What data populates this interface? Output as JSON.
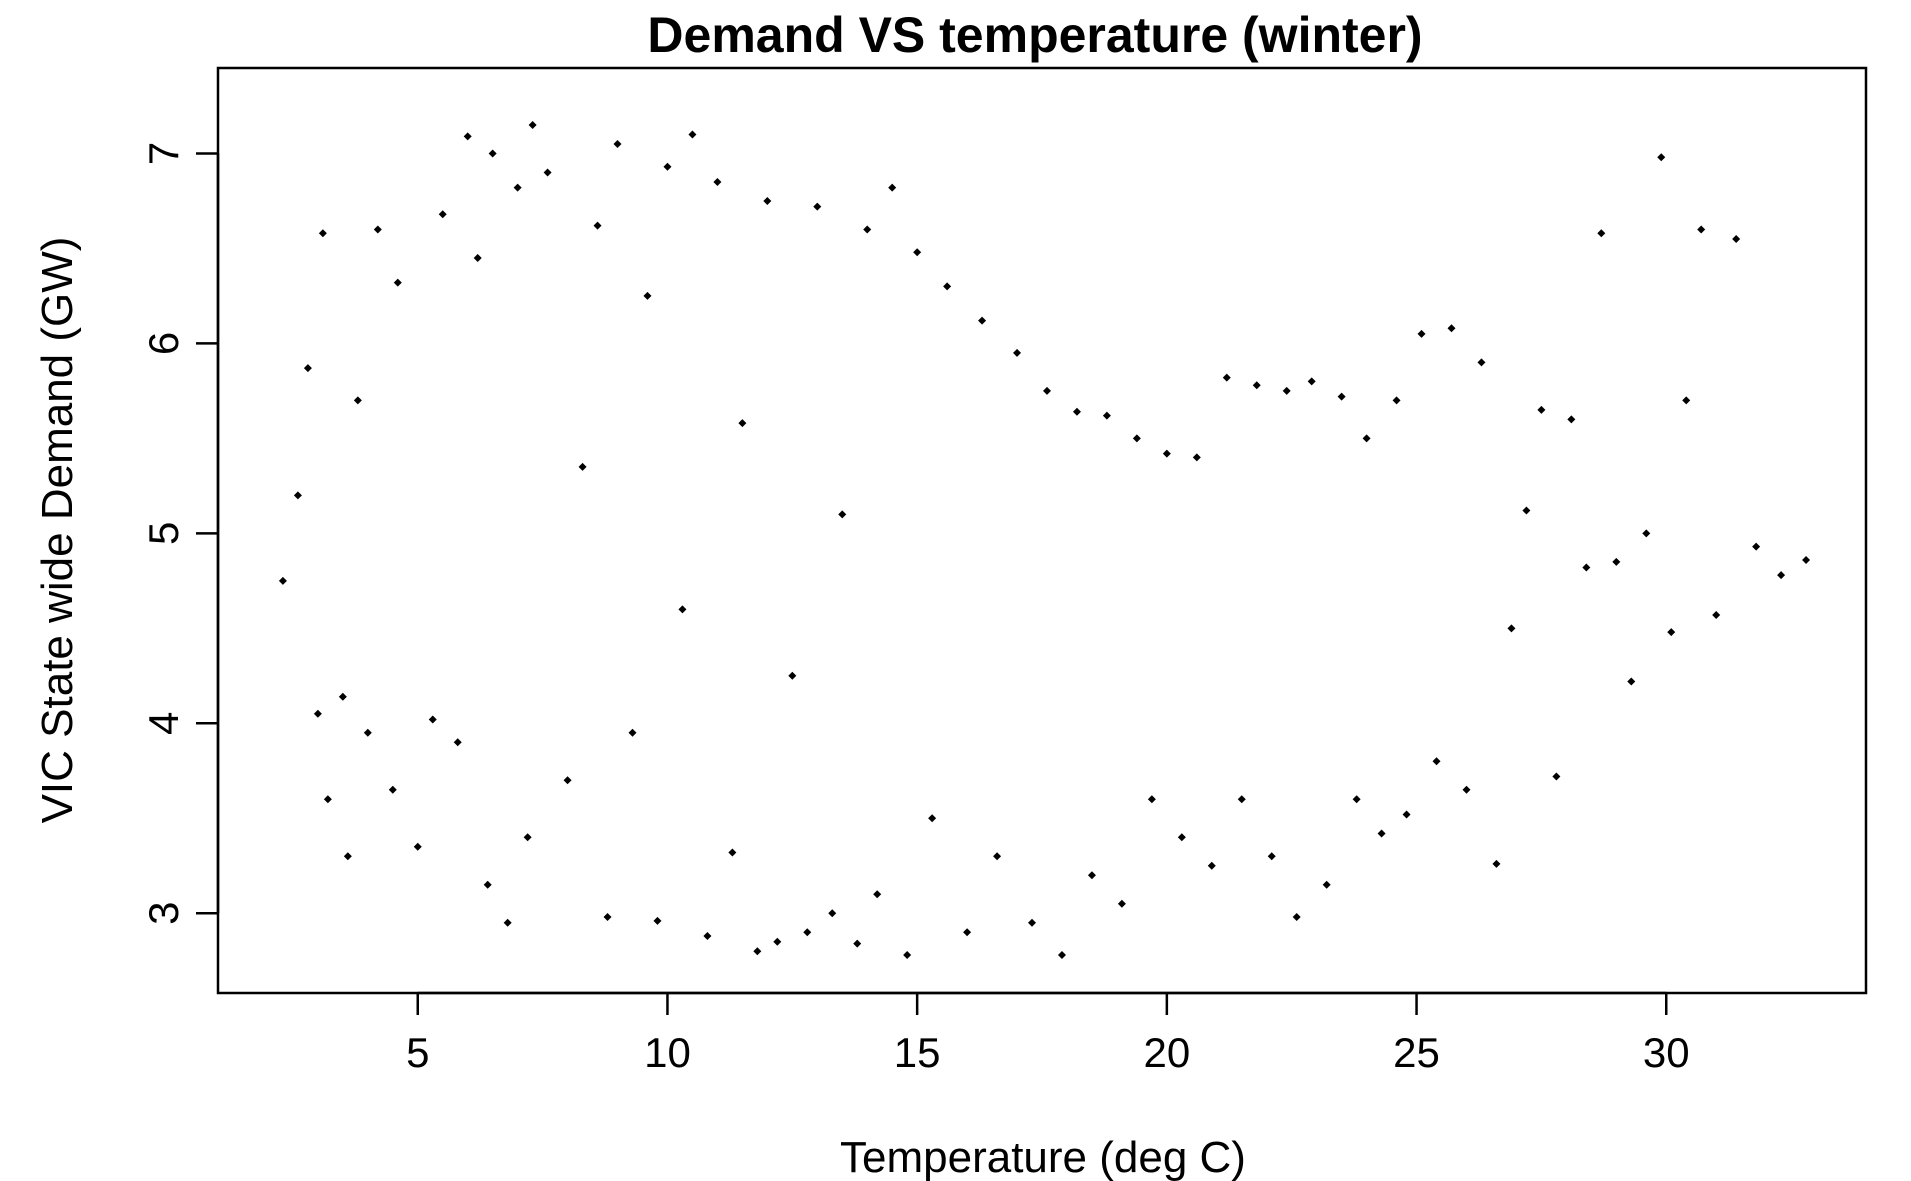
{
  "chart_data": {
    "type": "scatter",
    "title": "Demand VS temperature (winter)",
    "xlabel": "Temperature (deg C)",
    "ylabel": "VIC State wide Demand (GW)",
    "xlim": [
      1.0,
      34.0
    ],
    "ylim": [
      2.58,
      7.45
    ],
    "x_ticks": [
      5,
      10,
      15,
      20,
      25,
      30
    ],
    "x_tick_labels": [
      "5",
      "10",
      "15",
      "20",
      "25",
      "30"
    ],
    "y_ticks": [
      3,
      4,
      5,
      6,
      7
    ],
    "y_tick_labels": [
      "3",
      "4",
      "5",
      "6",
      "7"
    ],
    "grid": false,
    "legend": "none",
    "point_color": "#000000",
    "marker": "diamond",
    "series": [
      {
        "x": [
          2.3,
          2.6,
          2.8,
          3.0,
          3.1,
          3.2,
          3.5,
          3.6,
          3.8,
          4.0,
          4.2,
          4.5,
          4.6,
          5.0,
          5.3,
          5.5,
          5.8,
          6.0,
          6.2,
          6.4,
          6.5,
          6.8,
          7.0,
          7.2,
          7.3,
          7.6,
          8.0,
          8.3,
          8.6,
          8.8,
          9.0,
          9.3,
          9.6,
          9.8,
          10.0,
          10.3,
          10.5,
          10.8,
          11.0,
          11.3,
          11.5,
          11.8,
          12.0,
          12.2,
          12.5,
          12.8,
          13.0,
          13.3,
          13.5,
          13.8,
          14.0,
          14.2,
          14.5,
          14.8,
          15.0,
          15.3,
          15.6,
          16.0,
          16.3,
          16.6,
          17.0,
          17.3,
          17.6,
          17.9,
          18.2,
          18.5,
          18.8,
          19.1,
          19.4,
          19.7,
          20.0,
          20.3,
          20.6,
          20.9,
          21.2,
          21.5,
          21.8,
          22.1,
          22.4,
          22.6,
          22.9,
          23.2,
          23.5,
          23.8,
          24.0,
          24.3,
          24.6,
          24.8,
          25.1,
          25.4,
          25.7,
          26.0,
          26.3,
          26.6,
          26.9,
          27.2,
          27.5,
          27.8,
          28.1,
          28.4,
          28.7,
          29.0,
          29.3,
          29.6,
          29.9,
          30.1,
          30.4,
          30.7,
          31.0,
          31.4,
          31.8,
          32.3,
          32.8
        ],
        "y": [
          4.75,
          5.2,
          5.87,
          4.05,
          6.58,
          3.6,
          4.14,
          3.3,
          5.7,
          3.95,
          6.6,
          3.65,
          6.32,
          3.35,
          4.02,
          6.68,
          3.9,
          7.09,
          6.45,
          3.15,
          7.0,
          2.95,
          6.82,
          3.4,
          7.15,
          6.9,
          3.7,
          5.35,
          6.62,
          2.98,
          7.05,
          3.95,
          6.25,
          2.96,
          6.93,
          4.6,
          7.1,
          2.88,
          6.85,
          3.32,
          5.58,
          2.8,
          6.75,
          2.85,
          4.25,
          2.9,
          6.72,
          3.0,
          5.1,
          2.84,
          6.6,
          3.1,
          6.82,
          2.78,
          6.48,
          3.5,
          6.3,
          2.9,
          6.12,
          3.3,
          5.95,
          2.95,
          5.75,
          2.78,
          5.64,
          3.2,
          5.62,
          3.05,
          5.5,
          3.6,
          5.42,
          3.4,
          5.4,
          3.25,
          5.82,
          3.6,
          5.78,
          3.3,
          5.75,
          2.98,
          5.8,
          3.15,
          5.72,
          3.6,
          5.5,
          3.42,
          5.7,
          3.52,
          6.05,
          3.8,
          6.08,
          3.65,
          5.9,
          3.26,
          4.5,
          5.12,
          5.65,
          3.72,
          5.6,
          4.82,
          6.58,
          4.85,
          4.22,
          5.0,
          6.98,
          4.48,
          5.7,
          6.6,
          4.57,
          6.55,
          4.93,
          4.78,
          4.86
        ]
      }
    ]
  }
}
